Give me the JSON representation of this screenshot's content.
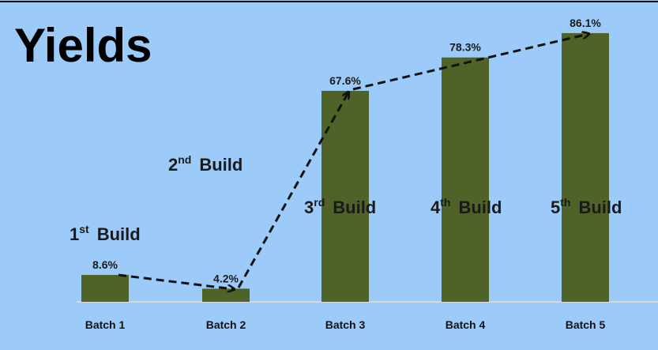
{
  "chart_data": {
    "type": "bar",
    "title": "Yields",
    "categories": [
      "Batch 1",
      "Batch 2",
      "Batch 3",
      "Batch 4",
      "Batch 5"
    ],
    "values": [
      8.6,
      4.2,
      67.6,
      78.3,
      86.1
    ],
    "value_labels": [
      "8.6%",
      "4.2%",
      "67.6%",
      "78.3%",
      "86.1%"
    ],
    "color": "#4f6228",
    "annotations": [
      {
        "base": "1",
        "sup": "st",
        "text": "Build"
      },
      {
        "base": "2",
        "sup": "nd",
        "text": "Build"
      },
      {
        "base": "3",
        "sup": "rd",
        "text": "Build"
      },
      {
        "base": "4",
        "sup": "th",
        "text": "Build"
      },
      {
        "base": "5",
        "sup": "th",
        "text": "Build"
      }
    ]
  }
}
